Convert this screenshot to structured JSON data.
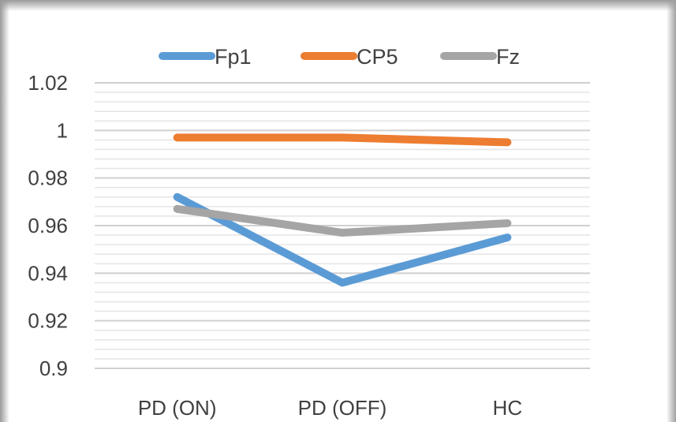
{
  "chart_data": {
    "type": "line",
    "categories": [
      "PD (ON)",
      "PD (OFF)",
      "HC"
    ],
    "series": [
      {
        "name": "Fp1",
        "color": "#5b9bd5",
        "values": [
          0.972,
          0.936,
          0.955
        ]
      },
      {
        "name": "CP5",
        "color": "#ed7d31",
        "values": [
          0.997,
          0.997,
          0.995
        ]
      },
      {
        "name": "Fz",
        "color": "#a5a5a5",
        "values": [
          0.967,
          0.957,
          0.961
        ]
      }
    ],
    "ylim": [
      0.9,
      1.02
    ],
    "yticks": [
      "1.02",
      "1",
      "0.98",
      "0.96",
      "0.94",
      "0.92",
      "0.9"
    ],
    "ytick_values": [
      1.02,
      1.0,
      0.98,
      0.96,
      0.94,
      0.92,
      0.9
    ],
    "grid": true,
    "legend_position": "top"
  }
}
